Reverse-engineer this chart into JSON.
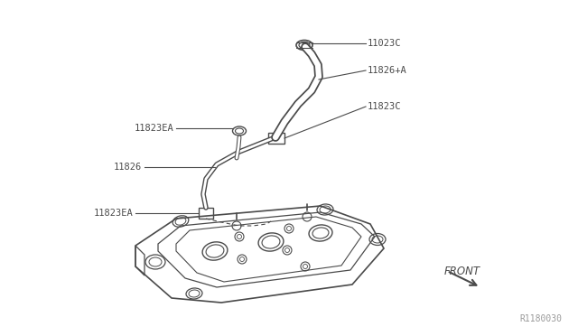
{
  "bg_color": "#ffffff",
  "line_color": "#4a4a4a",
  "label_color": "#4a4a4a",
  "ref_number": "R1180030",
  "front_label": "FRONT",
  "labels": {
    "11023C_top": "11023C",
    "11826A": "11826+A",
    "11823C": "11823C",
    "11823EA_left": "11823EA",
    "11826": "11826",
    "11823EA_bot": "11823EA"
  }
}
